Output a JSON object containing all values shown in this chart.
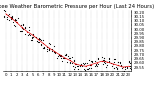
{
  "title": "Milwaukee Weather Barometric Pressure per Hour (Last 24 Hours)",
  "background_color": "#ffffff",
  "grid_color": "#aaaaaa",
  "xlim": [
    -0.5,
    23.5
  ],
  "ylim": [
    29.5,
    30.22
  ],
  "ytick_values": [
    29.55,
    29.6,
    29.65,
    29.7,
    29.75,
    29.8,
    29.85,
    29.9,
    29.95,
    30.0,
    30.05,
    30.1,
    30.15,
    30.2
  ],
  "hours": [
    0,
    1,
    2,
    3,
    4,
    5,
    6,
    7,
    8,
    9,
    10,
    11,
    12,
    13,
    14,
    15,
    16,
    17,
    18,
    19,
    20,
    21,
    22,
    23
  ],
  "pressure_main": [
    30.18,
    30.13,
    30.08,
    30.02,
    29.97,
    29.93,
    29.88,
    29.83,
    29.78,
    29.74,
    29.7,
    29.66,
    29.63,
    29.59,
    29.57,
    29.56,
    29.58,
    29.6,
    29.62,
    29.61,
    29.59,
    29.57,
    29.55,
    29.56
  ],
  "title_fontsize": 3.8,
  "tick_fontsize": 2.8,
  "line_color": "#dd0000",
  "scatter_color": "#000000",
  "line_width": 0.5,
  "dot_size": 0.8,
  "scatter_size": 0.7
}
